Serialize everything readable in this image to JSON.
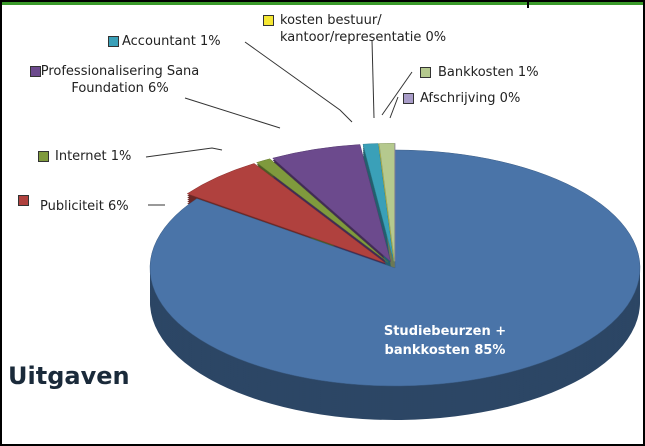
{
  "chart_data": {
    "type": "pie3d",
    "title": "Uitgaven",
    "categories": [
      "Studiebeurzen + bankkosten",
      "Publiciteit",
      "Internet",
      "Professionalisering Sana Foundation",
      "Accountant",
      "kosten bestuur/ kantoor/representatie",
      "Bankkosten",
      "Afschrijving"
    ],
    "values": [
      85,
      6,
      1,
      6,
      1,
      0,
      1,
      0
    ],
    "value_labels": [
      "85%",
      "6%",
      "1%",
      "6%",
      "1%",
      "0%",
      "1%",
      "0%"
    ],
    "colors": [
      "#4a74a8",
      "#b0413e",
      "#7f9a3d",
      "#6c4a8d",
      "#3aa0b8",
      "#f5e733",
      "#b5c98e",
      "#a89cc8"
    ]
  }
}
